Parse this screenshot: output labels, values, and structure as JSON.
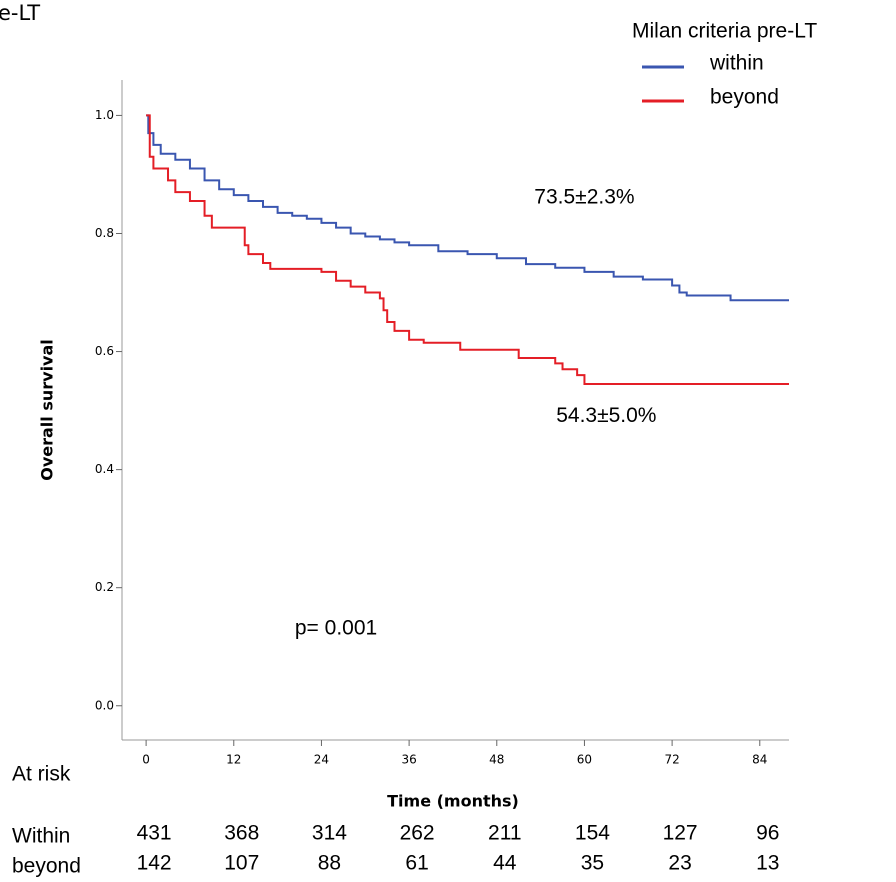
{
  "chart_data": {
    "type": "line",
    "corner_text": "e-LT",
    "legend_title": "Milan criteria pre-LT",
    "legend": "top-right",
    "xlabel": "Time (months)",
    "ylabel": "Overall survival",
    "xlim": [
      -3.3,
      88
    ],
    "ylim": [
      -0.058,
      1.06
    ],
    "xticks": [
      0,
      12,
      24,
      36,
      48,
      60,
      72,
      84
    ],
    "yticks": [
      {
        "value": 0,
        "label": "0.0"
      },
      {
        "value": 0.2,
        "label": "0.2"
      },
      {
        "value": 0.4,
        "label": "0.4"
      },
      {
        "value": 0.6,
        "label": "0.6"
      },
      {
        "value": 0.8,
        "label": "0.8"
      },
      {
        "value": 1,
        "label": "1.0"
      }
    ],
    "series": [
      {
        "name": "within",
        "color": "#3a56b0",
        "x": [
          0,
          0.3,
          1,
          2,
          4,
          6,
          8,
          10,
          12,
          14,
          16,
          18,
          20,
          22,
          24,
          26,
          28,
          30,
          32,
          34,
          36,
          40,
          44,
          48,
          52,
          56,
          60,
          64,
          68,
          72,
          73,
          74,
          80,
          88
        ],
        "values": [
          1.0,
          0.97,
          0.95,
          0.935,
          0.925,
          0.91,
          0.89,
          0.875,
          0.865,
          0.855,
          0.845,
          0.835,
          0.83,
          0.825,
          0.818,
          0.81,
          0.8,
          0.795,
          0.79,
          0.785,
          0.78,
          0.77,
          0.765,
          0.758,
          0.748,
          0.742,
          0.735,
          0.727,
          0.722,
          0.712,
          0.7,
          0.695,
          0.687,
          0.687
        ]
      },
      {
        "name": "beyond",
        "color": "#e41e26",
        "x": [
          0,
          0.5,
          1,
          3,
          4,
          6,
          8,
          9,
          13.5,
          14,
          16,
          17,
          24,
          26,
          28,
          30,
          32,
          32.5,
          33,
          34,
          36,
          38,
          43,
          51,
          56,
          57,
          59,
          60,
          88
        ],
        "values": [
          1.0,
          0.93,
          0.91,
          0.89,
          0.87,
          0.855,
          0.83,
          0.81,
          0.78,
          0.765,
          0.75,
          0.74,
          0.735,
          0.72,
          0.71,
          0.7,
          0.69,
          0.67,
          0.65,
          0.635,
          0.62,
          0.615,
          0.603,
          0.589,
          0.58,
          0.57,
          0.56,
          0.545,
          0.545
        ]
      }
    ],
    "annotations": [
      {
        "text": "73.5±2.3%",
        "x": 60,
        "y": 0.86
      },
      {
        "text": "54.3±5.0%",
        "x": 63,
        "y": 0.49
      },
      {
        "text": "p= 0.001",
        "x": 26,
        "y": 0.13
      }
    ],
    "at_risk": {
      "title": "At risk",
      "rows": [
        {
          "name": "Within",
          "values": [
            "431",
            "368",
            "314",
            "262",
            "211",
            "154",
            "127",
            "96"
          ]
        },
        {
          "name": "beyond",
          "values": [
            "142",
            "107",
            "88",
            "61",
            "44",
            "35",
            "23",
            "13"
          ]
        }
      ]
    }
  }
}
